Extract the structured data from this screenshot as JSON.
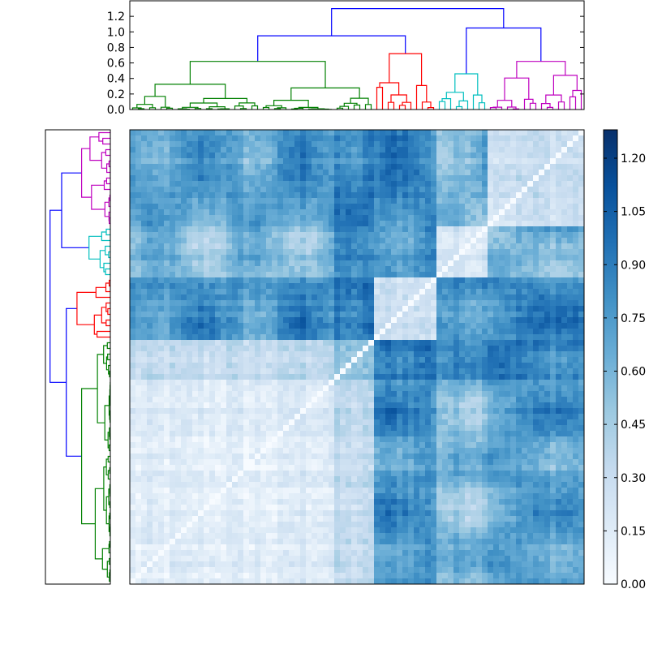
{
  "chart_data": {
    "type": "heatmap",
    "title": "",
    "description": "Clustered distance matrix with dendrograms",
    "top_dendrogram": {
      "ylim": [
        0.0,
        1.4
      ],
      "yticks": [
        "0.0",
        "0.2",
        "0.4",
        "0.6",
        "0.8",
        "1.0",
        "1.2"
      ],
      "yticks_values": [
        0.0,
        0.2,
        0.4,
        0.6,
        0.8,
        1.0,
        1.2
      ],
      "cluster_colors": [
        "#008000",
        "#ff0000",
        "#00bfbf",
        "#bf00bf"
      ],
      "link_color": "#0000ff",
      "root_height": 1.3,
      "merge_heights": {
        "green_top": 0.62,
        "green_red": 0.95,
        "cyan_magenta": 1.05,
        "root": 1.3
      }
    },
    "heatmap": {
      "n": 80,
      "colormap": "Blues",
      "clusters": [
        {
          "name": "green",
          "size": 43
        },
        {
          "name": "red",
          "size": 11
        },
        {
          "name": "cyan",
          "size": 9
        },
        {
          "name": "magenta",
          "size": 17
        }
      ]
    },
    "colorbar": {
      "range": [
        0.0,
        1.28
      ],
      "ticks": [
        "0.00",
        "0.15",
        "0.30",
        "0.45",
        "0.60",
        "0.75",
        "0.90",
        "1.05",
        "1.20"
      ],
      "tick_values": [
        0.0,
        0.15,
        0.3,
        0.45,
        0.6,
        0.75,
        0.9,
        1.05,
        1.2
      ]
    }
  }
}
